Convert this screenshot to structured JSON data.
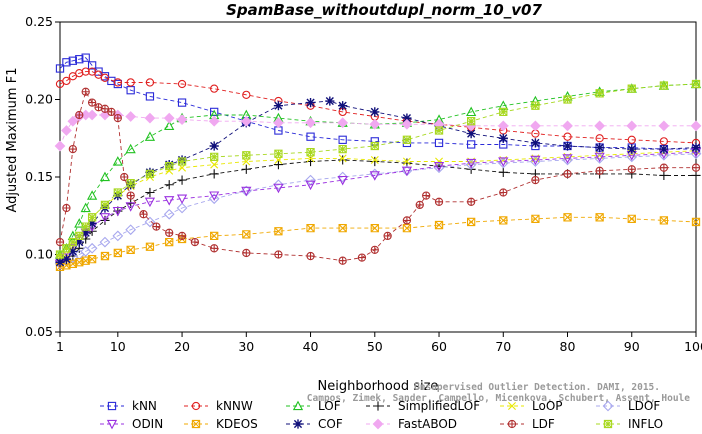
{
  "chart_data": {
    "type": "line",
    "title": "SpamBase_withoutdupl_norm_10_v07",
    "xlabel": "Neighborhood size",
    "ylabel": "Adjusted Maximum F1",
    "xlim": [
      1,
      100
    ],
    "ylim": [
      0.05,
      0.25
    ],
    "xticks": [
      "1",
      "10",
      "20",
      "30",
      "40",
      "50",
      "60",
      "70",
      "80",
      "90",
      "100"
    ],
    "yticks": [
      "0.05",
      "0.10",
      "0.15",
      "0.20",
      "0.25"
    ],
    "grid": false,
    "legend_position": "bottom",
    "watermark": [
      "Campos, Zimek, Sander, Campello, Micenkova, Schubert, Assent, Houle",
      "Unsupervised Outlier Detection. DAMI, 2015."
    ],
    "series": [
      {
        "name": "kNN",
        "color": "#2a2ad8",
        "marker": "square",
        "x": [
          1,
          2,
          3,
          4,
          5,
          6,
          7,
          8,
          9,
          10,
          12,
          15,
          20,
          25,
          30,
          35,
          40,
          45,
          50,
          55,
          60,
          65,
          70,
          75,
          80,
          85,
          90,
          95,
          100
        ],
        "y": [
          0.22,
          0.224,
          0.225,
          0.226,
          0.227,
          0.222,
          0.218,
          0.215,
          0.212,
          0.21,
          0.206,
          0.202,
          0.198,
          0.192,
          0.186,
          0.18,
          0.176,
          0.174,
          0.173,
          0.172,
          0.172,
          0.171,
          0.171,
          0.17,
          0.17,
          0.169,
          0.169,
          0.168,
          0.168
        ]
      },
      {
        "name": "kNNW",
        "color": "#e02020",
        "marker": "circle",
        "x": [
          1,
          2,
          3,
          4,
          5,
          6,
          7,
          8,
          10,
          12,
          15,
          20,
          25,
          30,
          35,
          40,
          45,
          50,
          55,
          60,
          65,
          70,
          75,
          80,
          85,
          90,
          95,
          100
        ],
        "y": [
          0.21,
          0.212,
          0.215,
          0.217,
          0.218,
          0.218,
          0.216,
          0.214,
          0.211,
          0.211,
          0.211,
          0.21,
          0.207,
          0.203,
          0.199,
          0.196,
          0.192,
          0.189,
          0.186,
          0.184,
          0.182,
          0.18,
          0.178,
          0.176,
          0.175,
          0.174,
          0.173,
          0.172
        ]
      },
      {
        "name": "LOF",
        "color": "#22c222",
        "marker": "triangle",
        "x": [
          1,
          2,
          3,
          4,
          5,
          6,
          8,
          10,
          12,
          15,
          18,
          20,
          25,
          30,
          35,
          40,
          45,
          50,
          55,
          60,
          65,
          70,
          75,
          80,
          85,
          90,
          95,
          100
        ],
        "y": [
          0.1,
          0.104,
          0.112,
          0.12,
          0.13,
          0.138,
          0.15,
          0.16,
          0.168,
          0.176,
          0.183,
          0.188,
          0.19,
          0.19,
          0.188,
          0.186,
          0.185,
          0.184,
          0.185,
          0.187,
          0.192,
          0.196,
          0.199,
          0.202,
          0.205,
          0.207,
          0.209,
          0.21
        ]
      },
      {
        "name": "SimplifiedLOF",
        "color": "#111111",
        "marker": "plus",
        "x": [
          1,
          2,
          3,
          4,
          5,
          6,
          8,
          10,
          12,
          15,
          18,
          20,
          25,
          30,
          35,
          40,
          45,
          50,
          55,
          60,
          65,
          70,
          75,
          80,
          85,
          90,
          95,
          100
        ],
        "y": [
          0.096,
          0.096,
          0.099,
          0.104,
          0.11,
          0.115,
          0.122,
          0.128,
          0.133,
          0.14,
          0.145,
          0.148,
          0.152,
          0.155,
          0.158,
          0.16,
          0.161,
          0.16,
          0.159,
          0.157,
          0.155,
          0.153,
          0.152,
          0.152,
          0.152,
          0.152,
          0.151,
          0.151
        ]
      },
      {
        "name": "LoOP",
        "color": "#e8e800",
        "marker": "x",
        "x": [
          1,
          2,
          3,
          4,
          5,
          6,
          8,
          10,
          12,
          15,
          18,
          20,
          25,
          30,
          35,
          40,
          45,
          50,
          55,
          60,
          65,
          70,
          75,
          80,
          85,
          90,
          95,
          100
        ],
        "y": [
          0.098,
          0.1,
          0.105,
          0.112,
          0.118,
          0.124,
          0.132,
          0.138,
          0.144,
          0.15,
          0.154,
          0.156,
          0.158,
          0.16,
          0.161,
          0.162,
          0.162,
          0.161,
          0.16,
          0.16,
          0.16,
          0.161,
          0.162,
          0.163,
          0.164,
          0.165,
          0.166,
          0.167
        ]
      },
      {
        "name": "LDOF",
        "color": "#a8a8ee",
        "marker": "diamond",
        "x": [
          1,
          2,
          3,
          4,
          5,
          6,
          8,
          10,
          12,
          15,
          18,
          20,
          25,
          30,
          35,
          40,
          45,
          50,
          55,
          60,
          65,
          70,
          75,
          80,
          85,
          90,
          95,
          100
        ],
        "y": [
          0.094,
          0.096,
          0.098,
          0.1,
          0.102,
          0.104,
          0.108,
          0.112,
          0.116,
          0.121,
          0.126,
          0.13,
          0.136,
          0.141,
          0.145,
          0.148,
          0.15,
          0.152,
          0.154,
          0.156,
          0.158,
          0.159,
          0.16,
          0.161,
          0.162,
          0.163,
          0.164,
          0.165
        ]
      },
      {
        "name": "ODIN",
        "color": "#9a30e0",
        "marker": "triangle-down",
        "x": [
          1,
          2,
          3,
          4,
          5,
          6,
          8,
          10,
          12,
          15,
          18,
          20,
          25,
          30,
          35,
          40,
          45,
          50,
          55,
          60,
          65,
          70,
          75,
          80,
          85,
          90,
          95,
          100
        ],
        "y": [
          0.094,
          0.098,
          0.104,
          0.11,
          0.114,
          0.118,
          0.124,
          0.128,
          0.131,
          0.134,
          0.135,
          0.136,
          0.138,
          0.141,
          0.143,
          0.145,
          0.148,
          0.151,
          0.154,
          0.157,
          0.159,
          0.16,
          0.161,
          0.162,
          0.163,
          0.164,
          0.165,
          0.166
        ]
      },
      {
        "name": "KDEOS",
        "color": "#f0a800",
        "marker": "square-x",
        "x": [
          1,
          2,
          3,
          4,
          5,
          6,
          8,
          10,
          12,
          15,
          18,
          20,
          25,
          30,
          35,
          40,
          45,
          50,
          55,
          60,
          65,
          70,
          75,
          80,
          85,
          90,
          95,
          100
        ],
        "y": [
          0.092,
          0.093,
          0.094,
          0.095,
          0.096,
          0.097,
          0.099,
          0.101,
          0.103,
          0.105,
          0.108,
          0.11,
          0.112,
          0.113,
          0.115,
          0.117,
          0.117,
          0.117,
          0.117,
          0.119,
          0.121,
          0.122,
          0.123,
          0.124,
          0.124,
          0.123,
          0.122,
          0.121
        ]
      },
      {
        "name": "COF",
        "color": "#10107a",
        "marker": "asterisk",
        "x": [
          1,
          2,
          3,
          4,
          5,
          6,
          8,
          10,
          12,
          15,
          18,
          20,
          25,
          30,
          35,
          40,
          43,
          45,
          50,
          55,
          60,
          65,
          70,
          75,
          80,
          85,
          90,
          95,
          100
        ],
        "y": [
          0.095,
          0.097,
          0.102,
          0.108,
          0.114,
          0.12,
          0.13,
          0.138,
          0.145,
          0.153,
          0.158,
          0.161,
          0.17,
          0.185,
          0.196,
          0.198,
          0.199,
          0.196,
          0.192,
          0.188,
          0.183,
          0.178,
          0.175,
          0.172,
          0.17,
          0.169,
          0.168,
          0.168,
          0.169
        ]
      },
      {
        "name": "FastABOD",
        "color": "#f0a8f0",
        "marker": "diamond-filled",
        "x": [
          1,
          2,
          3,
          4,
          5,
          6,
          8,
          10,
          12,
          15,
          18,
          20,
          25,
          30,
          35,
          40,
          45,
          50,
          55,
          60,
          65,
          70,
          75,
          80,
          85,
          90,
          95,
          100
        ],
        "y": [
          0.17,
          0.18,
          0.186,
          0.189,
          0.19,
          0.19,
          0.19,
          0.19,
          0.189,
          0.188,
          0.188,
          0.187,
          0.186,
          0.186,
          0.185,
          0.185,
          0.185,
          0.184,
          0.184,
          0.184,
          0.183,
          0.183,
          0.183,
          0.183,
          0.183,
          0.183,
          0.183,
          0.183
        ]
      },
      {
        "name": "LDF",
        "color": "#b03030",
        "marker": "circle-plus",
        "x": [
          1,
          2,
          3,
          4,
          5,
          6,
          7,
          8,
          9,
          10,
          11,
          12,
          14,
          16,
          18,
          20,
          22,
          25,
          30,
          35,
          40,
          45,
          48,
          50,
          52,
          55,
          57,
          58,
          60,
          65,
          70,
          75,
          80,
          85,
          90,
          95,
          100
        ],
        "y": [
          0.108,
          0.13,
          0.168,
          0.19,
          0.205,
          0.198,
          0.195,
          0.194,
          0.192,
          0.188,
          0.15,
          0.138,
          0.126,
          0.118,
          0.114,
          0.112,
          0.108,
          0.104,
          0.101,
          0.1,
          0.099,
          0.096,
          0.098,
          0.103,
          0.112,
          0.122,
          0.132,
          0.138,
          0.134,
          0.134,
          0.14,
          0.148,
          0.152,
          0.154,
          0.155,
          0.156,
          0.156
        ]
      },
      {
        "name": "INFLO",
        "color": "#a8d820",
        "marker": "square-star",
        "x": [
          1,
          2,
          3,
          4,
          5,
          6,
          8,
          10,
          12,
          15,
          18,
          20,
          25,
          30,
          35,
          40,
          45,
          50,
          55,
          60,
          65,
          70,
          75,
          80,
          85,
          90,
          95,
          100
        ],
        "y": [
          0.1,
          0.104,
          0.108,
          0.112,
          0.118,
          0.124,
          0.132,
          0.14,
          0.146,
          0.152,
          0.157,
          0.16,
          0.163,
          0.164,
          0.165,
          0.166,
          0.168,
          0.17,
          0.174,
          0.18,
          0.186,
          0.192,
          0.196,
          0.2,
          0.204,
          0.207,
          0.209,
          0.21
        ]
      }
    ]
  }
}
